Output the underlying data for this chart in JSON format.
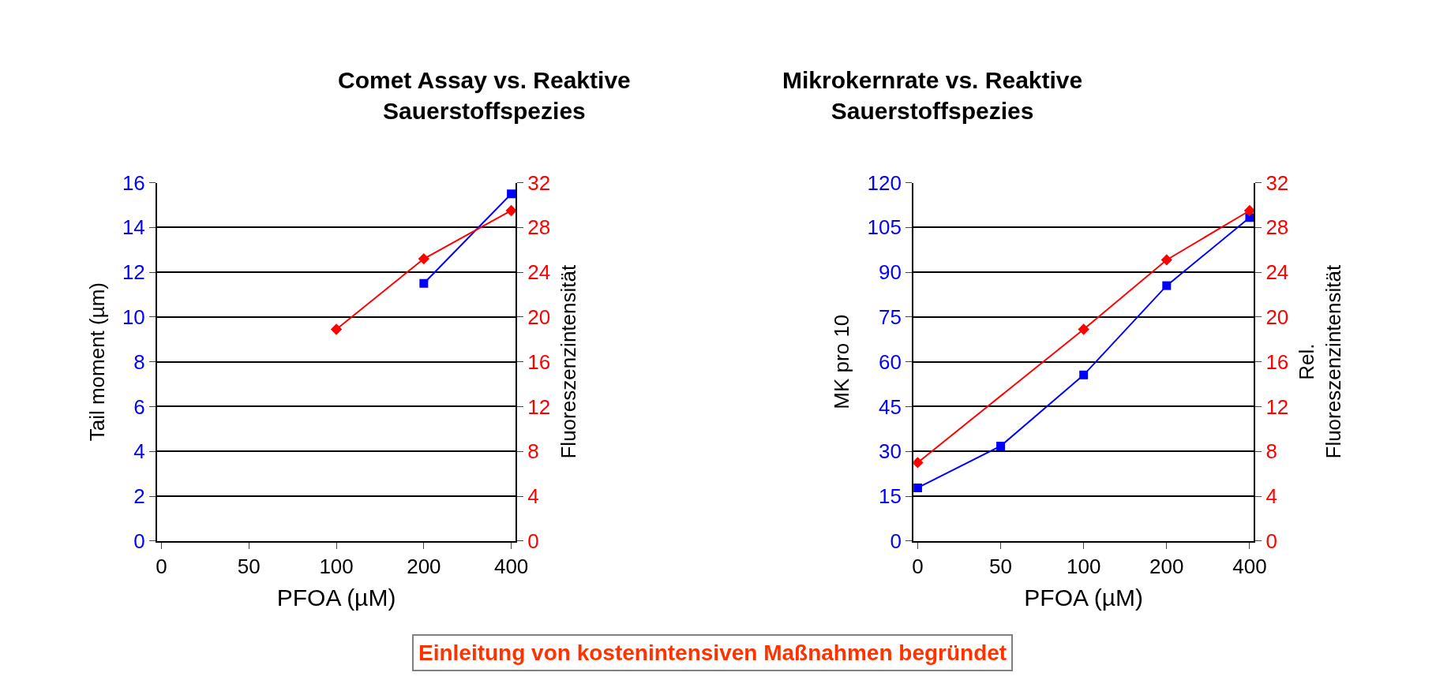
{
  "chart_data": [
    {
      "type": "line",
      "title": "Comet Assay vs. Reaktive Sauerstoffspezies",
      "xlabel": "PFOA (µM)",
      "ylabel": "Tail moment (µm)",
      "y2label": "Fluoreszenzintensität",
      "categories": [
        "0",
        "50",
        "100",
        "200",
        "400"
      ],
      "series": [
        {
          "color": "#0000ff",
          "marker": "square",
          "values": [
            null,
            null,
            null,
            11.5,
            15.5
          ]
        },
        {
          "color": "#ff0000",
          "marker": "diamond",
          "axis": "y2",
          "values": [
            null,
            null,
            18.9,
            25.2,
            29.5
          ]
        }
      ],
      "ylim": [
        0,
        16
      ],
      "yticks": [
        0,
        2,
        4,
        6,
        8,
        10,
        12,
        14,
        16
      ],
      "y2lim": [
        0,
        32
      ],
      "y2ticks": [
        0,
        4,
        8,
        12,
        16,
        20,
        24,
        28,
        32
      ],
      "grid": "y",
      "annotations": [
        "Einleitung von kostenintensiven Maßnahmen begründet"
      ]
    },
    {
      "type": "line",
      "title": "Mikrokernrate vs. Reaktive Sauerstoffspezies",
      "xlabel": "PFOA (µM)",
      "ylabel": "MK pro 10",
      "y2label": "Rel. Fluoreszenzintensität",
      "categories": [
        "0",
        "50",
        "100",
        "200",
        "400"
      ],
      "series": [
        {
          "color": "#0000ff",
          "marker": "square",
          "values": [
            17.8,
            31.8,
            55.6,
            85.5,
            108.3
          ]
        },
        {
          "color": "#ff0000",
          "marker": "diamond",
          "axis": "y2",
          "values": [
            7.0,
            null,
            18.9,
            25.1,
            29.5
          ]
        }
      ],
      "ylim": [
        0,
        120
      ],
      "yticks": [
        0,
        15,
        30,
        45,
        60,
        75,
        90,
        105,
        120
      ],
      "y2lim": [
        0,
        32
      ],
      "y2ticks": [
        0,
        4,
        8,
        12,
        16,
        20,
        24,
        28,
        32
      ],
      "grid": "y"
    }
  ]
}
